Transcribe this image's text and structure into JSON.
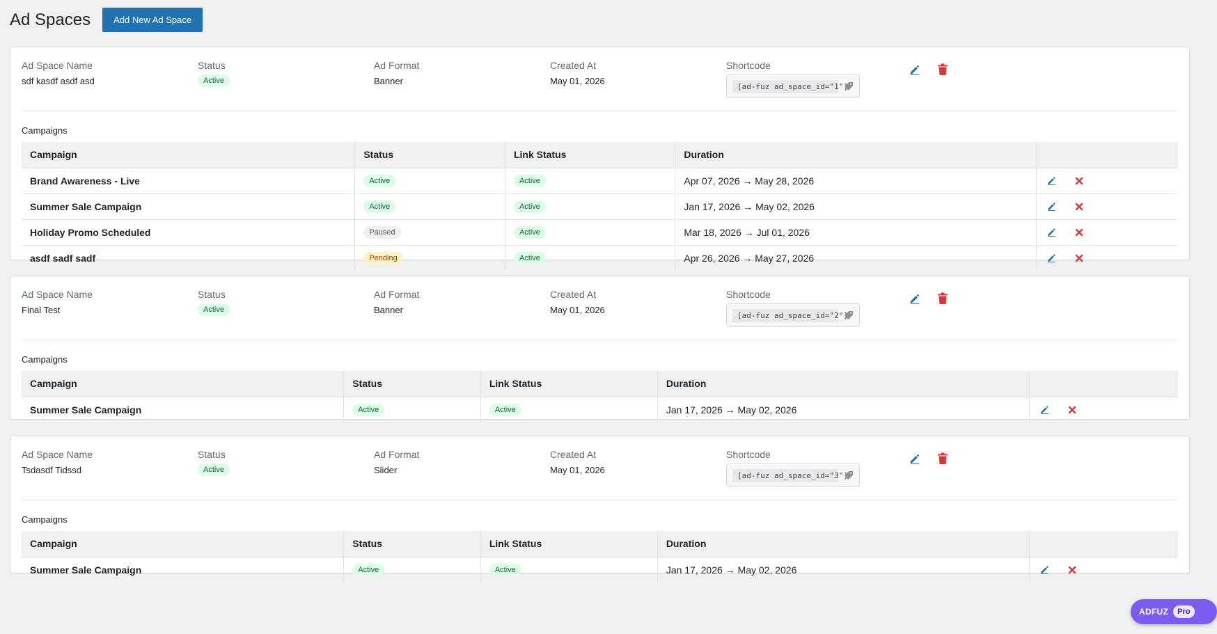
{
  "page": {
    "title": "Ad Spaces",
    "add_button_label": "Add New Ad Space"
  },
  "labels": {
    "name": "Ad Space Name",
    "status": "Status",
    "format": "Ad Format",
    "created": "Created At",
    "shortcode": "Shortcode",
    "campaigns": "Campaigns",
    "col_campaign": "Campaign",
    "col_status": "Status",
    "col_link_status": "Link Status",
    "col_duration": "Duration"
  },
  "colors": {
    "accent": "#2271b1",
    "edit_icon": "#2271b1",
    "delete_icon": "#d63638",
    "active_badge_bg": "#dcfce7",
    "pending_badge_bg": "#fef3c7",
    "pro_pill": "#7c5cf0"
  },
  "icons": {
    "edit": "pencil-icon",
    "delete": "trash-icon",
    "remove": "x-icon",
    "copy": "tag-icon"
  },
  "ad_spaces": [
    {
      "name": "sdf kasdf asdf asd",
      "status": "Active",
      "format": "Banner",
      "created": "May 01, 2026",
      "shortcode": "[ad-fuz ad_space_id=\"1\"]",
      "campaigns": [
        {
          "name": "Brand Awareness - Live",
          "status": "Active",
          "link_status": "Active",
          "duration": "Apr 07, 2026 → May 28, 2026"
        },
        {
          "name": "Summer Sale Campaign",
          "status": "Active",
          "link_status": "Active",
          "duration": "Jan 17, 2026 → May 02, 2026"
        },
        {
          "name": "Holiday Promo Scheduled",
          "status": "Paused",
          "link_status": "Active",
          "duration": "Mar 18, 2026 → Jul 01, 2026"
        },
        {
          "name": "asdf sadf sadf",
          "status": "Pending",
          "link_status": "Active",
          "duration": "Apr 26, 2026 → May 27, 2026"
        }
      ]
    },
    {
      "name": "Final Test",
      "status": "Active",
      "format": "Banner",
      "created": "May 01, 2026",
      "shortcode": "[ad-fuz ad_space_id=\"2\"]",
      "campaigns": [
        {
          "name": "Summer Sale Campaign",
          "status": "Active",
          "link_status": "Active",
          "duration": "Jan 17, 2026 → May 02, 2026"
        }
      ]
    },
    {
      "name": "Tsdasdf Tidssd",
      "status": "Active",
      "format": "Slider",
      "created": "May 01, 2026",
      "shortcode": "[ad-fuz ad_space_id=\"3\"]",
      "campaigns": [
        {
          "name": "Summer Sale Campaign",
          "status": "Active",
          "link_status": "Active",
          "duration": "Jan 17, 2026 → May 02, 2026"
        }
      ]
    }
  ],
  "pro_badge": {
    "brand": "ADFUZ",
    "tag": "Pro"
  }
}
